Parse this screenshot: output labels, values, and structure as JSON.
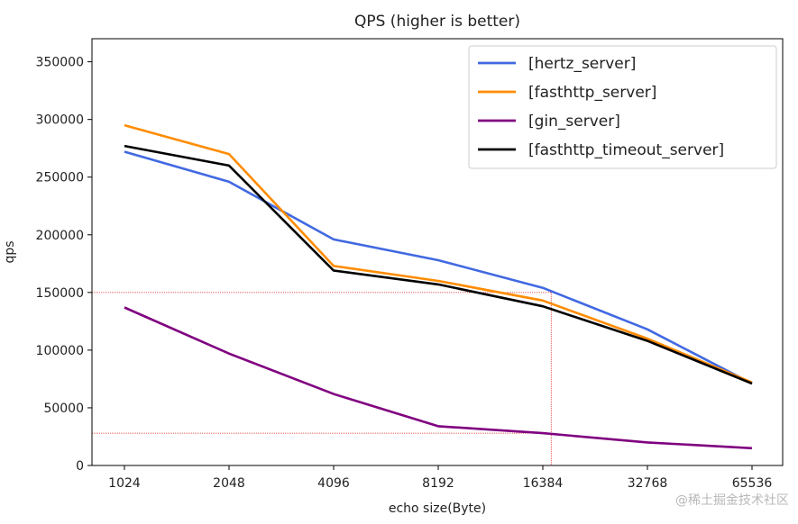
{
  "chart_data": {
    "type": "line",
    "title": "QPS (higher is better)",
    "xlabel": "echo size(Byte)",
    "ylabel": "qps",
    "categories": [
      "1024",
      "2048",
      "4096",
      "8192",
      "16384",
      "32768",
      "65536"
    ],
    "ylim": [
      0,
      370000
    ],
    "yticks": [
      0,
      50000,
      100000,
      150000,
      200000,
      250000,
      300000,
      350000
    ],
    "grid": false,
    "legend_position": "top-right",
    "series": [
      {
        "name": "[hertz_server]",
        "color": "#4169e1",
        "values": [
          272000,
          246000,
          196000,
          178000,
          154000,
          118000,
          71000
        ]
      },
      {
        "name": "[fasthttp_server]",
        "color": "#ff8c00",
        "values": [
          295000,
          270000,
          173000,
          160000,
          143000,
          110000,
          72000
        ]
      },
      {
        "name": "[gin_server]",
        "color": "#800080",
        "values": [
          137000,
          97000,
          62000,
          34000,
          28000,
          20000,
          15000
        ]
      },
      {
        "name": "[fasthttp_timeout_server]",
        "color": "#000000",
        "values": [
          277000,
          260000,
          169000,
          157000,
          138000,
          108000,
          71000
        ]
      }
    ],
    "annotations": {
      "color": "#dd2222",
      "hlines": [
        150000,
        28000
      ],
      "vline_between": [
        "16384",
        "32768"
      ],
      "vline_fraction": 0.08
    }
  },
  "watermark": "@稀土掘金技术社区"
}
